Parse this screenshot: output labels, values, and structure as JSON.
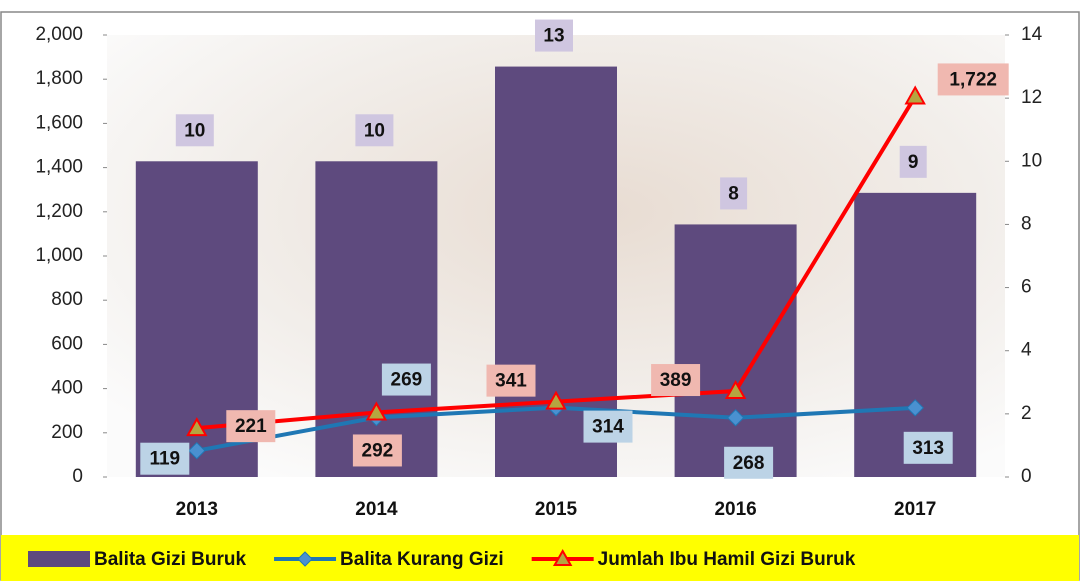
{
  "chart_data": {
    "type": "bar-line",
    "categories": [
      "2013",
      "2014",
      "2015",
      "2016",
      "2017"
    ],
    "series": [
      {
        "name": "Balita Gizi Buruk",
        "type": "bar",
        "axis": "y2",
        "color": "#5e4a7e",
        "values": [
          10,
          10,
          13,
          8,
          9
        ]
      },
      {
        "name": "Balita Kurang Gizi",
        "type": "line",
        "marker": "diamond",
        "color": "#1f77b4",
        "values": [
          119,
          269,
          314,
          268,
          313
        ]
      },
      {
        "name": "Jumlah Ibu Hamil Gizi Buruk",
        "type": "line",
        "marker": "triangle",
        "color": "#ff0000",
        "values": [
          221,
          292,
          341,
          389,
          1722
        ],
        "value_labels": [
          "221",
          "292",
          "341",
          "389",
          "1,722"
        ]
      }
    ],
    "ylim": [
      0,
      2000
    ],
    "yticks": [
      0,
      200,
      400,
      600,
      800,
      {
        "value": 1000,
        "label": "1,000"
      },
      {
        "value": 1200,
        "label": "1,200"
      },
      {
        "value": 1400,
        "label": "1,400"
      },
      {
        "value": 1600,
        "label": "1,600"
      },
      {
        "value": 1800,
        "label": "1,800"
      },
      {
        "value": 2000,
        "label": "2,000"
      }
    ],
    "y2lim": [
      0,
      14
    ],
    "y2ticks": [
      0,
      2,
      4,
      6,
      8,
      10,
      12,
      14
    ],
    "legend": "bottom"
  }
}
